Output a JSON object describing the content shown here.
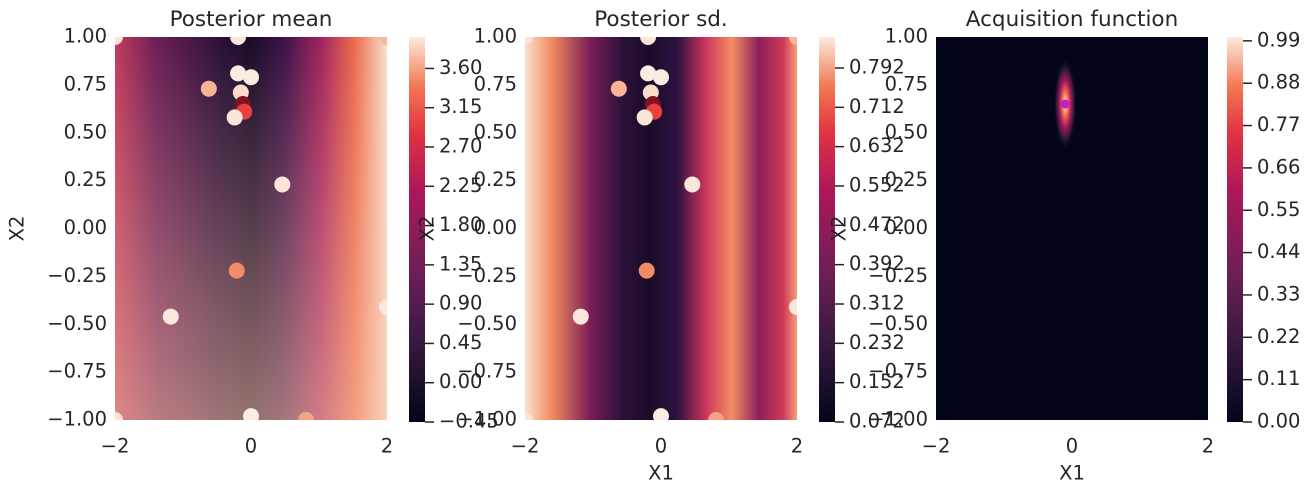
{
  "chart_data": [
    {
      "type": "heatmap",
      "title": "Posterior mean",
      "ylabel": "X2",
      "xlim": [
        -2,
        2
      ],
      "ylim": [
        -1,
        1
      ],
      "xticks": [
        {
          "value": -2,
          "label": "−2"
        },
        0,
        2
      ],
      "yticks": [
        {
          "value": -1,
          "label": "−1.00"
        },
        {
          "value": -0.75,
          "label": "−0.75"
        },
        {
          "value": -0.5,
          "label": "−0.50"
        },
        {
          "value": -0.25,
          "label": "−0.25"
        },
        {
          "value": 0,
          "label": "0.00"
        },
        {
          "value": 0.25,
          "label": "0.25"
        },
        {
          "value": 0.5,
          "label": "0.50"
        },
        {
          "value": 0.75,
          "label": "0.75"
        },
        {
          "value": 1,
          "label": "1.00"
        }
      ],
      "clim": [
        -0.45,
        3.96
      ],
      "cticks": [
        {
          "value": -0.45,
          "label": "−0.45"
        },
        {
          "value": 0,
          "label": "0.00"
        },
        0.45,
        {
          "value": 0.9,
          "label": "0.90"
        },
        1.35,
        {
          "value": 1.8,
          "label": "1.80"
        },
        2.25,
        {
          "value": 2.7,
          "label": "2.70"
        },
        3.15,
        {
          "value": 3.6,
          "label": "3.60"
        }
      ],
      "points": {
        "x": [
          -2,
          -0.19,
          2,
          -0.62,
          -0.19,
          0,
          -0.15,
          -0.12,
          -0.1,
          -0.24,
          0.46,
          -0.21,
          -1.18,
          2,
          -2,
          0,
          0.81
        ],
        "y": [
          1,
          1,
          1,
          0.73,
          0.81,
          0.79,
          0.71,
          0.65,
          0.61,
          0.58,
          0.23,
          -0.22,
          -0.46,
          -0.41,
          -1,
          -0.98,
          -1
        ],
        "colors": [
          "#fbe3d3",
          "#fbe8da",
          "#f6b89a",
          "#f8b495",
          "#fbede3",
          "#fbece2",
          "#fbdcc8",
          "#7e1424",
          "#e9403e",
          "#fbe6d8",
          "#fbe6d8",
          "#f18c6a",
          "#fbe8dc",
          "#fbe8dc",
          "#fbe3d3",
          "#fbede3",
          "#f4a387"
        ]
      }
    },
    {
      "type": "heatmap",
      "title": "Posterior sd.",
      "xlabel": "X1",
      "ylabel": "X2",
      "xlim": [
        -2,
        2
      ],
      "ylim": [
        -1,
        1
      ],
      "xticks": [
        {
          "value": -2,
          "label": "−2"
        },
        0,
        2
      ],
      "yticks": [
        {
          "value": -1,
          "label": "−1.00"
        },
        {
          "value": -0.75,
          "label": "−0.75"
        },
        {
          "value": -0.5,
          "label": "−0.50"
        },
        {
          "value": -0.25,
          "label": "−0.25"
        },
        {
          "value": 0,
          "label": "0.00"
        },
        {
          "value": 0.25,
          "label": "0.25"
        },
        {
          "value": 0.5,
          "label": "0.50"
        },
        {
          "value": 0.75,
          "label": "0.75"
        },
        {
          "value": 1,
          "label": "1.00"
        }
      ],
      "clim": [
        0.072,
        0.855
      ],
      "cticks": [
        0.072,
        0.152,
        0.232,
        0.312,
        0.392,
        0.472,
        0.552,
        0.632,
        0.712,
        0.792
      ],
      "points": {
        "x": [
          -2,
          -0.19,
          2,
          -0.62,
          -0.19,
          0,
          -0.15,
          -0.12,
          -0.1,
          -0.24,
          0.46,
          -0.21,
          -1.18,
          2,
          -2,
          0,
          0.81
        ],
        "y": [
          1,
          1,
          1,
          0.73,
          0.81,
          0.79,
          0.71,
          0.65,
          0.61,
          0.58,
          0.23,
          -0.22,
          -0.46,
          -0.41,
          -1,
          -0.98,
          -1
        ],
        "colors": [
          "#fbe3d3",
          "#fbe8da",
          "#f6b89a",
          "#f8b495",
          "#fbede3",
          "#fbece2",
          "#fbdcc8",
          "#7e1424",
          "#e9403e",
          "#fbe6d8",
          "#fbe6d8",
          "#f18c6a",
          "#fbe8dc",
          "#fbe8dc",
          "#fbe3d3",
          "#fbede3",
          "#f4a387"
        ]
      }
    },
    {
      "type": "heatmap",
      "title": "Acquisition function",
      "xlabel": "X1",
      "ylabel": "X2",
      "xlim": [
        -2,
        2
      ],
      "ylim": [
        -1,
        1
      ],
      "xticks": [
        {
          "value": -2,
          "label": "−2"
        },
        0,
        2
      ],
      "yticks": [
        {
          "value": -1,
          "label": "−1.00"
        },
        {
          "value": -0.75,
          "label": "−0.75"
        },
        {
          "value": -0.5,
          "label": "−0.50"
        },
        {
          "value": -0.25,
          "label": "−0.25"
        },
        {
          "value": 0,
          "label": "0.00"
        },
        {
          "value": 0.25,
          "label": "0.25"
        },
        {
          "value": 0.5,
          "label": "0.50"
        },
        {
          "value": 0.75,
          "label": "0.75"
        },
        {
          "value": 1,
          "label": "1.00"
        }
      ],
      "clim": [
        0,
        1.0
      ],
      "cticks": [
        {
          "value": 0,
          "label": "0.00"
        },
        0.11,
        0.22,
        0.33,
        0.44,
        0.55,
        0.66,
        0.77,
        0.88,
        0.99
      ],
      "points": {
        "x": [
          -0.1
        ],
        "y": [
          0.65
        ],
        "colors": [
          "#c21fc8"
        ]
      }
    }
  ]
}
